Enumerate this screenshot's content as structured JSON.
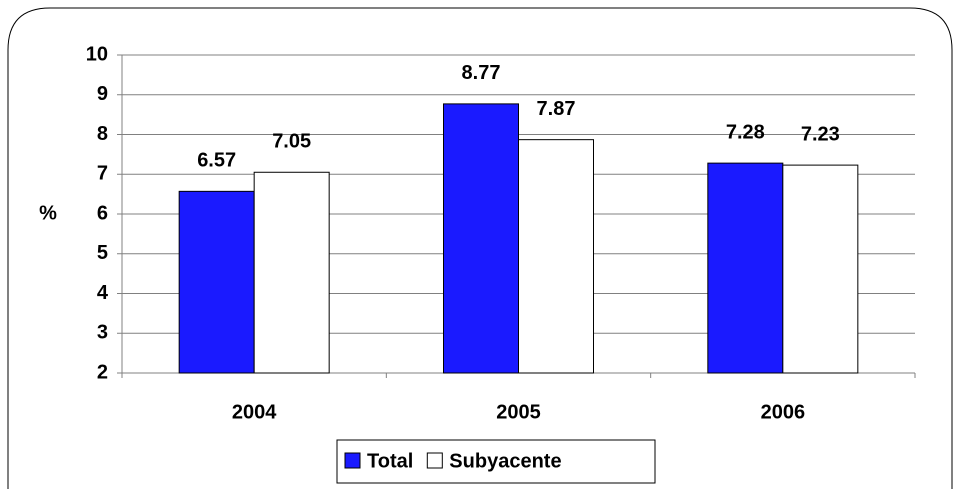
{
  "chart_data": {
    "type": "bar",
    "ylabel": "%",
    "categories": [
      "2004",
      "2005",
      "2006"
    ],
    "series": [
      {
        "name": "Total",
        "color": "#1a1aff",
        "values": [
          6.57,
          8.77,
          7.28
        ]
      },
      {
        "name": "Subyacente",
        "color": "#ffffff",
        "values": [
          7.05,
          7.87,
          7.23
        ]
      }
    ],
    "ylim": [
      2,
      10
    ],
    "yticks": [
      2,
      3,
      4,
      5,
      6,
      7,
      8,
      9,
      10
    ],
    "grid": true,
    "legend": "bottom"
  }
}
